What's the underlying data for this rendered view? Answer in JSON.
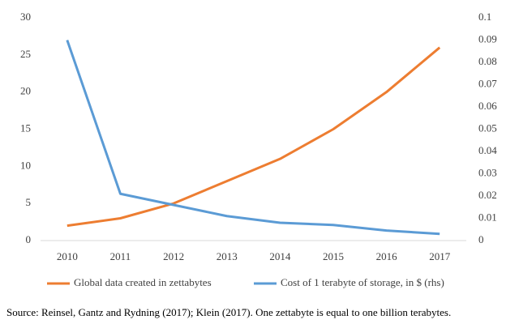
{
  "chart_data": {
    "type": "line",
    "categories": [
      "2010",
      "2011",
      "2012",
      "2013",
      "2014",
      "2015",
      "2016",
      "2017"
    ],
    "series": [
      {
        "name": "Global data created in zettabytes",
        "color": "#ed7d31",
        "values": [
          2,
          3,
          5,
          8,
          11,
          15,
          20,
          26
        ]
      },
      {
        "name": "Cost of 1 terabyte of storage, in $ (rhs)",
        "color": "#5b9bd5",
        "axis": "y2",
        "values": [
          0.09,
          0.021,
          0.016,
          0.011,
          0.008,
          0.007,
          0.0045,
          0.003
        ]
      }
    ],
    "ylim": [
      0,
      30
    ],
    "yticks": [
      0,
      5,
      10,
      15,
      20,
      25,
      30
    ],
    "y2lim": [
      0,
      0.1
    ],
    "y2ticks": [
      0,
      0.01,
      0.02,
      0.03,
      0.04,
      0.05,
      0.06,
      0.07,
      0.08,
      0.09,
      0.1
    ],
    "grid": false,
    "source": "Source: Reinsel, Gantz and Rydning (2017); Klein (2017). One zettabyte is equal to one billion terabytes."
  }
}
